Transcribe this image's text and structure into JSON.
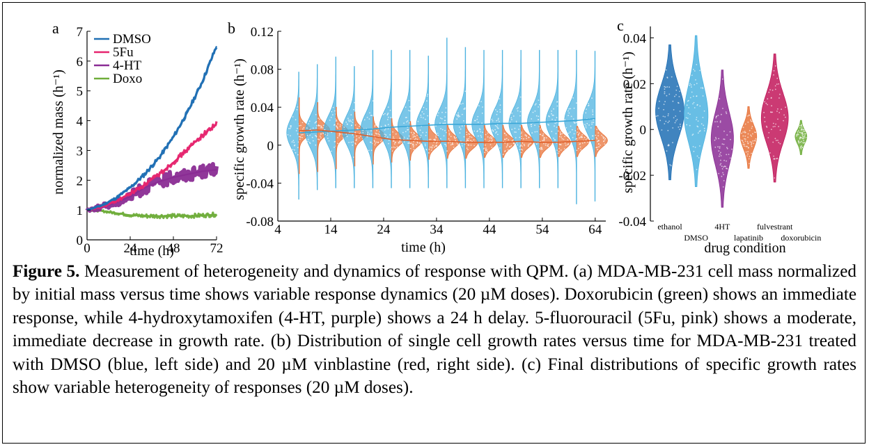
{
  "panel_a": {
    "label": "a",
    "chart_data": {
      "type": "line",
      "xlabel": "time (h)",
      "ylabel": "normalized mass (h⁻¹)",
      "x_ticks": [
        "0",
        "24",
        "48",
        "72"
      ],
      "y_ticks": [
        "0",
        "1",
        "2",
        "3",
        "4",
        "5",
        "6",
        "7"
      ],
      "xlim": [
        0,
        72
      ],
      "ylim": [
        0,
        7
      ],
      "series": [
        {
          "name": "DMSO",
          "color": "#1f6fb4",
          "x": [
            0,
            8,
            16,
            24,
            32,
            40,
            48,
            56,
            64,
            72
          ],
          "y": [
            1.0,
            1.15,
            1.4,
            1.75,
            2.2,
            2.75,
            3.45,
            4.3,
            5.3,
            6.5
          ],
          "band": 0.07
        },
        {
          "name": "5Fu",
          "color": "#e6246e",
          "x": [
            0,
            8,
            16,
            24,
            32,
            40,
            48,
            56,
            64,
            72
          ],
          "y": [
            1.0,
            1.1,
            1.3,
            1.55,
            1.85,
            2.2,
            2.6,
            3.05,
            3.5,
            3.9
          ],
          "band": 0.08
        },
        {
          "name": "4-HT",
          "color": "#8a2c94",
          "x": [
            0,
            8,
            16,
            24,
            32,
            40,
            48,
            56,
            64,
            72
          ],
          "y": [
            1.0,
            1.1,
            1.25,
            1.45,
            1.75,
            1.95,
            2.1,
            2.2,
            2.3,
            2.35
          ],
          "band": 0.22
        },
        {
          "name": "Doxo",
          "color": "#6fad3a",
          "x": [
            0,
            8,
            16,
            24,
            32,
            40,
            48,
            56,
            64,
            72
          ],
          "y": [
            1.0,
            0.97,
            0.9,
            0.83,
            0.8,
            0.8,
            0.8,
            0.8,
            0.82,
            0.85
          ],
          "band": 0.07
        }
      ],
      "legend_placement": "top-left"
    }
  },
  "panel_b": {
    "label": "b",
    "chart_data": {
      "type": "violin",
      "xlabel": "time (h)",
      "ylabel": "specific growth rate (h⁻¹)",
      "x_ticks": [
        "4",
        "14",
        "24",
        "34",
        "44",
        "54",
        "64"
      ],
      "y_ticks": [
        "-0.08",
        "-0.04",
        "0",
        "0.04",
        "0.08",
        "0.12"
      ],
      "xlim": [
        4,
        66
      ],
      "ylim": [
        -0.08,
        0.12
      ],
      "times": [
        8,
        11.5,
        15,
        18.5,
        22,
        25.5,
        29,
        32.5,
        36,
        39.5,
        43,
        46.5,
        50,
        53.5,
        57,
        60.5,
        64
      ],
      "series": [
        {
          "name": "",
          "color": "#4db3e0",
          "side": "left",
          "medians": [
            0.013,
            0.014,
            0.015,
            0.016,
            0.017,
            0.019,
            0.02,
            0.021,
            0.022,
            0.022,
            0.022,
            0.023,
            0.023,
            0.024,
            0.025,
            0.026,
            0.028
          ],
          "maxes": [
            0.077,
            0.085,
            0.093,
            0.083,
            0.1,
            0.1,
            0.1,
            0.094,
            0.113,
            0.103,
            0.1,
            0.1,
            0.1,
            0.1,
            0.1,
            0.1,
            0.099
          ],
          "mins": [
            -0.057,
            -0.047,
            -0.045,
            -0.045,
            -0.045,
            -0.045,
            -0.045,
            -0.045,
            -0.045,
            -0.045,
            -0.045,
            -0.045,
            -0.045,
            -0.045,
            -0.045,
            -0.062,
            -0.059
          ]
        },
        {
          "name": "",
          "color": "#e8733a",
          "side": "right",
          "medians": [
            0.015,
            0.016,
            0.014,
            0.012,
            0.009,
            0.006,
            0.005,
            0.004,
            0.004,
            0.003,
            0.003,
            0.003,
            0.004,
            0.003,
            0.003,
            0.004,
            0.005
          ],
          "maxes": [
            0.05,
            0.045,
            0.04,
            0.035,
            0.03,
            0.028,
            0.025,
            0.023,
            0.022,
            0.022,
            0.021,
            0.021,
            0.021,
            0.021,
            0.02,
            0.02,
            0.02
          ],
          "mins": [
            -0.03,
            -0.028,
            -0.025,
            -0.022,
            -0.02,
            -0.018,
            -0.016,
            -0.015,
            -0.014,
            -0.014,
            -0.013,
            -0.013,
            -0.013,
            -0.013,
            -0.012,
            -0.012,
            -0.012
          ]
        }
      ]
    }
  },
  "panel_c": {
    "label": "c",
    "chart_data": {
      "type": "violin",
      "xlabel": "drug condition",
      "ylabel": "specific growth rate (h⁻¹)",
      "y_ticks": [
        "-0.04",
        "-0.02",
        "0",
        "0.02",
        "0.04"
      ],
      "ylim": [
        -0.04,
        0.045
      ],
      "categories": [
        "ethanol",
        "DMSO",
        "4HT",
        "lapatinib",
        "fulvestrant",
        "doxorubicin"
      ],
      "label_row": [
        "upper",
        "lower",
        "upper",
        "lower",
        "upper",
        "lower"
      ],
      "colors": [
        "#1f6fb4",
        "#4db3e0",
        "#8a2c94",
        "#e8733a",
        "#c2185b",
        "#6fad3a"
      ],
      "medians": [
        0.008,
        0.006,
        -0.004,
        -0.003,
        0.005,
        -0.003
      ],
      "maxes": [
        0.037,
        0.041,
        0.026,
        0.01,
        0.033,
        0.004
      ],
      "mins": [
        -0.022,
        -0.025,
        -0.034,
        -0.017,
        -0.023,
        -0.011
      ],
      "half_widths": [
        0.9,
        0.75,
        0.7,
        0.5,
        0.85,
        0.35
      ]
    }
  },
  "caption": {
    "title": "Figure 5.",
    "text": " Measurement of heterogeneity and dynamics of response with QPM. (a) MDA-MB-231 cell mass normalized by initial mass versus time shows variable response dynamics (20 µM doses). Doxorubicin (green) shows an immediate response, while 4-hydroxytamoxifen (4-HT, purple) shows a 24 h delay. 5-fluorouracil (5Fu, pink) shows a moderate, immediate decrease in growth rate. (b) Distribution of single cell growth rates versus time for MDA-MB-231 treated with DMSO (blue, left side) and 20 µM vinblastine (red, right side). (c) Final distributions of specific growth rates show variable heterogeneity of responses (20 µM doses)."
  }
}
